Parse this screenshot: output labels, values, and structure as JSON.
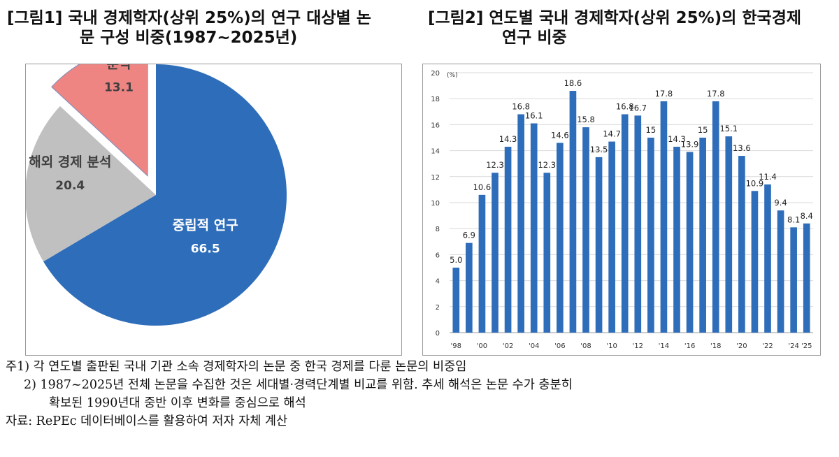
{
  "figure1": {
    "title_line1": "[그림1] 국내 경제학자(상위 25%)의 연구 대상별 논",
    "title_line2": "문 구성 비중(1987~2025년)"
  },
  "figure2": {
    "title_line1": "[그림2] 연도별 국내 경제학자(상위 25%)의 한국경제",
    "title_line2": "연구 비중"
  },
  "chart_data": [
    {
      "type": "pie",
      "labels": [
        "중립적 연구",
        "해외 경제 분석",
        "국내 경제 분석"
      ],
      "values": [
        66.5,
        20.4,
        13.1
      ],
      "colors": [
        "#2E6DB9",
        "#C0C0C0",
        "#EF8583"
      ],
      "exploded": [
        false,
        false,
        true
      ]
    },
    {
      "type": "bar",
      "unit_label": "(%)",
      "categories": [
        "'98",
        "'99",
        "'00",
        "'01",
        "'02",
        "'03",
        "'04",
        "'05",
        "'06",
        "'07",
        "'08",
        "'09",
        "'10",
        "'11",
        "'12",
        "'13",
        "'14",
        "'15",
        "'16",
        "'17",
        "'18",
        "'19",
        "'20",
        "'21",
        "'22",
        "'23",
        "'24",
        "'25"
      ],
      "tick_labels": [
        "'98",
        "'00",
        "'02",
        "'04",
        "'06",
        "'08",
        "'10",
        "'12",
        "'14",
        "'16",
        "'18",
        "'20",
        "'22",
        "'24",
        "'25"
      ],
      "values": [
        5.0,
        6.9,
        10.6,
        12.3,
        14.3,
        16.8,
        16.1,
        12.3,
        14.6,
        18.6,
        15.8,
        13.5,
        14.7,
        16.8,
        16.7,
        15,
        17.8,
        14.3,
        13.9,
        15,
        17.8,
        15.1,
        13.6,
        10.9,
        11.4,
        9.4,
        8.1,
        8.4
      ],
      "value_labels": [
        "5.0",
        "6.9",
        "10.6",
        "12.3",
        "14.3",
        "16.8",
        "16.1",
        "12.3",
        "14.6",
        "18.6",
        "15.8",
        "13.5",
        "14.7",
        "16.8",
        "16.7",
        "15",
        "17.8",
        "14.3",
        "13.9",
        "15",
        "17.8",
        "15.1",
        "13.6",
        "10.9",
        "11.4",
        "9.4",
        "8.1",
        "8.4"
      ],
      "ylim": [
        0,
        20
      ],
      "yticks": [
        0,
        2,
        4,
        6,
        8,
        10,
        12,
        14,
        16,
        18,
        20
      ],
      "bar_color": "#2E6DB9",
      "grid": true
    }
  ],
  "notes": {
    "note1": "주1) 각 연도별 출판된 국내 기관 소속 경제학자의 논문 중 한국 경제를 다룬 논문의 비중임",
    "note2a": "2) 1987~2025년 전체 논문을 수집한 것은 세대별·경력단계별 비교를 위함. 추세 해석은 논문 수가 충분히",
    "note2b": "확보된 1990년대 중반 이후 변화를 중심으로 해석",
    "source": "자료: RePEc 데이터베이스를 활용하여 저자 자체 계산"
  }
}
